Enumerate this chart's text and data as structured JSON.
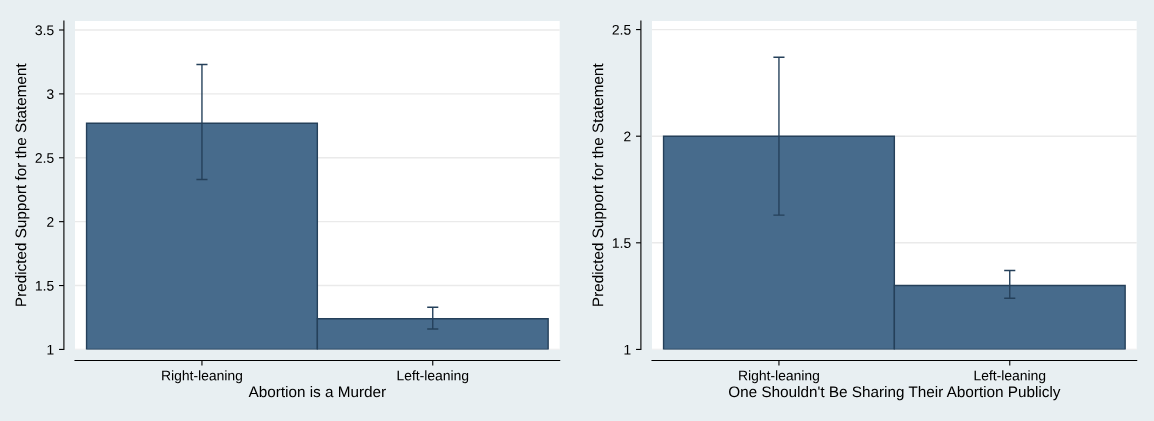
{
  "chart_data": [
    {
      "type": "bar",
      "xlabel": "Abortion is a Murder",
      "ylabel": "Predicted Support for the Statement",
      "categories": [
        "Right-leaning",
        "Left-leaning"
      ],
      "values": [
        2.77,
        1.24
      ],
      "errors": [
        [
          2.33,
          3.23
        ],
        [
          1.16,
          1.33
        ]
      ],
      "color": "#476b8c",
      "ylim": [
        1,
        3.57
      ],
      "yticks": [
        1,
        1.5,
        2,
        2.5,
        3,
        3.5
      ],
      "grid": "y"
    },
    {
      "type": "bar",
      "xlabel": "One Shouldn't Be Sharing Their Abortion Publicly",
      "ylabel": "Predicted Support for the Statement",
      "categories": [
        "Right-leaning",
        "Left-leaning"
      ],
      "values": [
        2.0,
        1.3
      ],
      "errors": [
        [
          1.63,
          2.37
        ],
        [
          1.24,
          1.37
        ]
      ],
      "color": "#476b8c",
      "ylim": [
        1,
        2.54
      ],
      "yticks": [
        1,
        1.5,
        2,
        2.5
      ],
      "grid": "y"
    }
  ]
}
